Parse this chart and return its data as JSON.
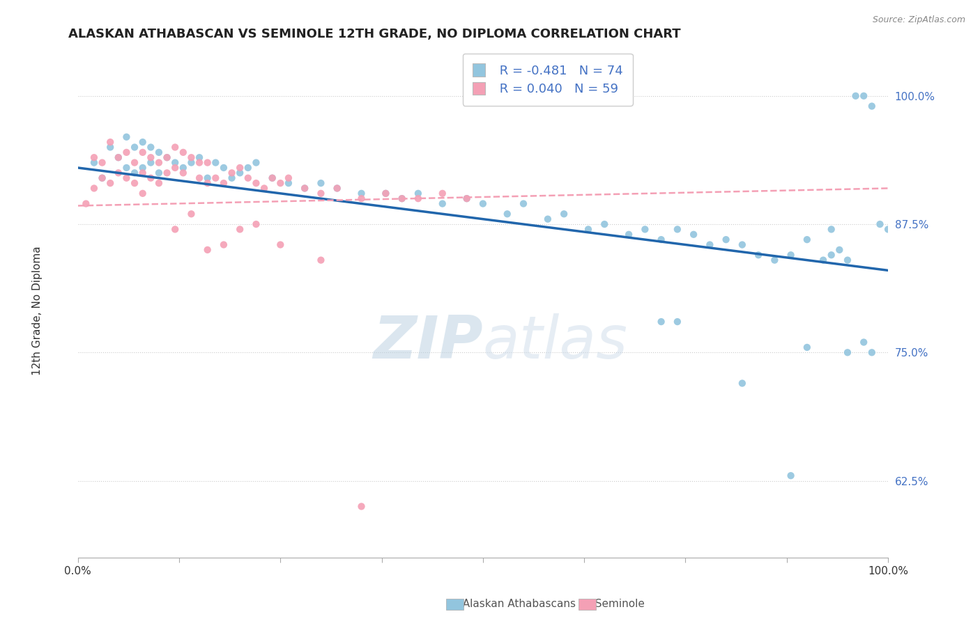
{
  "title": "ALASKAN ATHABASCAN VS SEMINOLE 12TH GRADE, NO DIPLOMA CORRELATION CHART",
  "source_text": "Source: ZipAtlas.com",
  "ylabel": "12th Grade, No Diploma",
  "legend_label_1": "Alaskan Athabascans",
  "legend_label_2": "Seminole",
  "legend_r1": "R = -0.481",
  "legend_n1": "N = 74",
  "legend_r2": "R = 0.040",
  "legend_n2": "N = 59",
  "color_blue": "#92c5de",
  "color_pink": "#f4a0b5",
  "color_blue_line": "#2166ac",
  "color_pink_line": "#f4a0b5",
  "background_color": "#ffffff",
  "watermark_color": "#c8d8e8",
  "xlim": [
    0.0,
    1.0
  ],
  "ylim": [
    0.55,
    1.05
  ],
  "blue_trend_y_start": 0.93,
  "blue_trend_y_end": 0.83,
  "pink_trend_y_start": 0.893,
  "pink_trend_y_end": 0.91,
  "blue_scatter_x": [
    0.02,
    0.03,
    0.04,
    0.05,
    0.06,
    0.06,
    0.07,
    0.07,
    0.08,
    0.08,
    0.09,
    0.09,
    0.1,
    0.1,
    0.11,
    0.12,
    0.13,
    0.14,
    0.15,
    0.16,
    0.17,
    0.18,
    0.19,
    0.2,
    0.21,
    0.22,
    0.24,
    0.26,
    0.28,
    0.3,
    0.32,
    0.35,
    0.38,
    0.4,
    0.42,
    0.45,
    0.48,
    0.5,
    0.53,
    0.55,
    0.58,
    0.6,
    0.63,
    0.65,
    0.68,
    0.7,
    0.72,
    0.74,
    0.76,
    0.78,
    0.8,
    0.82,
    0.84,
    0.86,
    0.88,
    0.9,
    0.92,
    0.93,
    0.94,
    0.95,
    0.96,
    0.97,
    0.98,
    0.99,
    1.0,
    0.97,
    0.98,
    0.72,
    0.74,
    0.82,
    0.88,
    0.9,
    0.93,
    0.95
  ],
  "blue_scatter_y": [
    0.935,
    0.92,
    0.95,
    0.94,
    0.96,
    0.93,
    0.925,
    0.95,
    0.955,
    0.93,
    0.935,
    0.95,
    0.945,
    0.925,
    0.94,
    0.935,
    0.93,
    0.935,
    0.94,
    0.92,
    0.935,
    0.93,
    0.92,
    0.925,
    0.93,
    0.935,
    0.92,
    0.915,
    0.91,
    0.915,
    0.91,
    0.905,
    0.905,
    0.9,
    0.905,
    0.895,
    0.9,
    0.895,
    0.885,
    0.895,
    0.88,
    0.885,
    0.87,
    0.875,
    0.865,
    0.87,
    0.86,
    0.87,
    0.865,
    0.855,
    0.86,
    0.855,
    0.845,
    0.84,
    0.845,
    0.86,
    0.84,
    0.845,
    0.85,
    0.84,
    1.0,
    1.0,
    0.99,
    0.875,
    0.87,
    0.76,
    0.75,
    0.78,
    0.78,
    0.72,
    0.63,
    0.755,
    0.87,
    0.75
  ],
  "pink_scatter_x": [
    0.01,
    0.02,
    0.02,
    0.03,
    0.03,
    0.04,
    0.04,
    0.05,
    0.05,
    0.06,
    0.06,
    0.07,
    0.07,
    0.08,
    0.08,
    0.08,
    0.09,
    0.09,
    0.1,
    0.1,
    0.11,
    0.11,
    0.12,
    0.12,
    0.13,
    0.13,
    0.14,
    0.15,
    0.15,
    0.16,
    0.16,
    0.17,
    0.18,
    0.19,
    0.2,
    0.21,
    0.22,
    0.23,
    0.24,
    0.25,
    0.26,
    0.28,
    0.3,
    0.32,
    0.35,
    0.38,
    0.4,
    0.42,
    0.45,
    0.48,
    0.12,
    0.14,
    0.16,
    0.18,
    0.2,
    0.22,
    0.25,
    0.3,
    0.35
  ],
  "pink_scatter_y": [
    0.895,
    0.94,
    0.91,
    0.935,
    0.92,
    0.955,
    0.915,
    0.94,
    0.925,
    0.92,
    0.945,
    0.935,
    0.915,
    0.945,
    0.925,
    0.905,
    0.94,
    0.92,
    0.935,
    0.915,
    0.94,
    0.925,
    0.95,
    0.93,
    0.925,
    0.945,
    0.94,
    0.935,
    0.92,
    0.935,
    0.915,
    0.92,
    0.915,
    0.925,
    0.93,
    0.92,
    0.915,
    0.91,
    0.92,
    0.915,
    0.92,
    0.91,
    0.905,
    0.91,
    0.9,
    0.905,
    0.9,
    0.9,
    0.905,
    0.9,
    0.87,
    0.885,
    0.85,
    0.855,
    0.87,
    0.875,
    0.855,
    0.84,
    0.6
  ]
}
